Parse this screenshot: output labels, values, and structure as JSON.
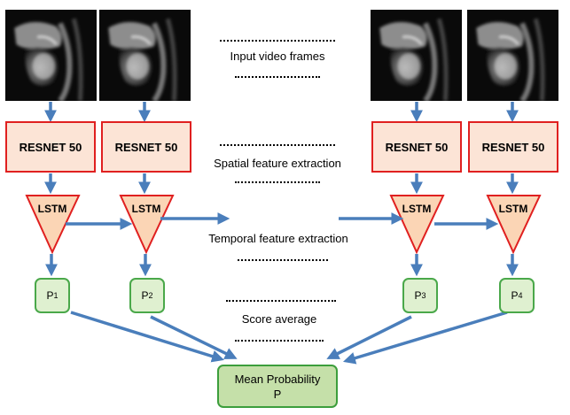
{
  "frames": [
    {
      "id": "frame-1"
    },
    {
      "id": "frame-2"
    },
    {
      "id": "frame-3"
    },
    {
      "id": "frame-4"
    }
  ],
  "resnet_label": "RESNET 50",
  "lstm_label": "LSTM",
  "predictions": [
    {
      "letter": "P",
      "index": "1"
    },
    {
      "letter": "P",
      "index": "2"
    },
    {
      "letter": "P",
      "index": "3"
    },
    {
      "letter": "P",
      "index": "4"
    }
  ],
  "stage_labels": {
    "input": "Input video frames",
    "spatial": "Spatial feature extraction",
    "temporal": "Temporal feature extraction",
    "score": "Score average"
  },
  "mean_box": {
    "line1": "Mean Probability",
    "line2": "P"
  },
  "colors": {
    "arrow": "#4a7ebb",
    "resnet_fill": "#fce4d6",
    "resnet_border": "#e02020",
    "lstm_fill": "#fbd5b5",
    "lstm_border": "#e02020",
    "p_fill": "#dff0d0",
    "p_border": "#4aa84a",
    "mean_fill": "#c5e0a9",
    "mean_border": "#3c9e3c"
  }
}
